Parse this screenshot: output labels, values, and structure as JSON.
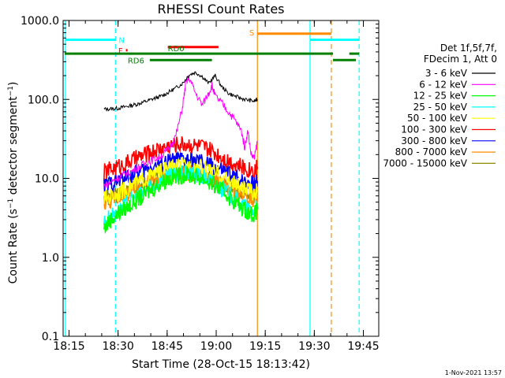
{
  "chart_data": {
    "type": "line",
    "title": "RHESSI Count Rates",
    "xlabel": "Start Time (28-Oct-15 18:13:42)",
    "ylabel": "Count Rate (s⁻¹ detector segment⁻¹)",
    "ylabel_main": "Count Rate (s",
    "ylabel_sup1": "−1",
    "ylabel_mid": " detector segment",
    "ylabel_sup2": "−1",
    "ylabel_close": ")",
    "ylog": true,
    "ylim": [
      0.1,
      1000
    ],
    "xlim_minutes": [
      -0.5,
      96
    ],
    "x_ticks": [
      {
        "m": 1.3,
        "label": "18:15"
      },
      {
        "m": 16.3,
        "label": "18:30"
      },
      {
        "m": 31.3,
        "label": "18:45"
      },
      {
        "m": 46.3,
        "label": "19:00"
      },
      {
        "m": 61.3,
        "label": "19:15"
      },
      {
        "m": 76.3,
        "label": "19:30"
      },
      {
        "m": 91.3,
        "label": "19:45"
      }
    ],
    "y_ticks": [
      {
        "v": 0.1,
        "label": "0.1"
      },
      {
        "v": 1,
        "label": "1.0"
      },
      {
        "v": 10,
        "label": "10.0"
      },
      {
        "v": 100,
        "label": "100.0"
      },
      {
        "v": 1000,
        "label": "1000.0"
      }
    ],
    "legend_header": [
      "Det 1f,5f,7f,",
      "FDecim 1, Att 0"
    ],
    "legend_position": "right",
    "series": [
      {
        "name": "3 - 6 keV",
        "color": "#000000",
        "x": [
          12,
          14,
          16,
          18,
          20,
          22,
          24,
          26,
          28,
          30,
          32,
          34,
          36,
          38,
          40,
          42,
          44,
          46,
          48,
          50,
          52,
          54,
          56,
          58,
          58.9
        ],
        "y": [
          75,
          76,
          77,
          80,
          83,
          87,
          92,
          98,
          105,
          112,
          125,
          140,
          160,
          205,
          220,
          195,
          160,
          200,
          145,
          120,
          110,
          103,
          98,
          95,
          100
        ]
      },
      {
        "name": "6 - 12 keV",
        "color": "#ff00ff",
        "x": [
          12,
          14,
          16,
          18,
          20,
          22,
          24,
          26,
          28,
          30,
          32,
          34,
          36,
          37,
          38,
          40,
          42,
          44,
          45,
          46,
          48,
          50,
          52,
          54,
          55,
          56,
          57,
          58,
          58.9
        ],
        "y": [
          8,
          9,
          10,
          11,
          12,
          13.5,
          15,
          16.5,
          18,
          20,
          24,
          35,
          80,
          160,
          190,
          120,
          85,
          120,
          150,
          110,
          90,
          70,
          55,
          40,
          25,
          40,
          20,
          18,
          30
        ]
      },
      {
        "name": "12 - 25 keV",
        "color": "#00ff00",
        "x": [
          12,
          14,
          16,
          18,
          20,
          22,
          24,
          26,
          28,
          30,
          32,
          34,
          36,
          38,
          40,
          42,
          44,
          46,
          48,
          50,
          52,
          54,
          56,
          58,
          58.9
        ],
        "y": [
          2.3,
          3,
          3.5,
          4,
          4.6,
          5.3,
          6,
          7,
          8,
          9,
          10,
          10.5,
          11,
          11,
          10.5,
          10,
          9,
          8,
          7,
          6,
          5,
          4.3,
          3.8,
          3.5,
          4
        ]
      },
      {
        "name": "25 - 50 keV",
        "color": "#00ffff",
        "x": [
          12,
          14,
          16,
          18,
          20,
          22,
          24,
          26,
          28,
          30,
          32,
          34,
          36,
          38,
          40,
          42,
          44,
          46,
          48,
          50,
          52,
          54,
          56,
          58,
          58.9
        ],
        "y": [
          2.8,
          3.3,
          3.8,
          4.3,
          5,
          5.8,
          6.6,
          7.5,
          8.5,
          9.5,
          10.5,
          11,
          11.5,
          11.5,
          11,
          10.5,
          9.5,
          8.5,
          7.5,
          6.5,
          5.5,
          4.7,
          4.1,
          3.8,
          4.3
        ]
      },
      {
        "name": "50 - 100 keV",
        "color": "#ffff00",
        "x": [
          12,
          14,
          16,
          18,
          20,
          22,
          24,
          26,
          28,
          30,
          32,
          34,
          36,
          38,
          40,
          42,
          44,
          46,
          48,
          50,
          52,
          54,
          56,
          58,
          58.9
        ],
        "y": [
          5.5,
          6,
          6.5,
          7,
          7.8,
          8.6,
          9.5,
          10.5,
          11.5,
          12.5,
          13.5,
          14,
          14.5,
          14.5,
          14,
          13.5,
          12.5,
          11.5,
          10.5,
          9.5,
          8.5,
          7.5,
          7,
          6.6,
          7
        ]
      },
      {
        "name": "100 - 300 keV",
        "color": "#ff0000",
        "x": [
          12,
          14,
          16,
          18,
          20,
          22,
          24,
          26,
          28,
          30,
          32,
          34,
          36,
          38,
          40,
          42,
          44,
          46,
          48,
          50,
          52,
          54,
          56,
          58,
          58.9
        ],
        "y": [
          12,
          13,
          14,
          15,
          16.5,
          18,
          19.5,
          21,
          23,
          24.5,
          26,
          27,
          27.5,
          27,
          26,
          25,
          23,
          21,
          19,
          17,
          15.5,
          14,
          13,
          13,
          14
        ]
      },
      {
        "name": "300 - 800 keV",
        "color": "#0000ff",
        "x": [
          12,
          14,
          16,
          18,
          20,
          22,
          24,
          26,
          28,
          30,
          32,
          34,
          36,
          38,
          40,
          42,
          44,
          46,
          48,
          50,
          52,
          54,
          56,
          58,
          58.9
        ],
        "y": [
          8,
          8.6,
          9.2,
          10,
          10.8,
          11.7,
          12.6,
          13.6,
          14.6,
          15.6,
          16.4,
          17,
          17.3,
          17,
          16.5,
          15.8,
          14.8,
          13.7,
          12.6,
          11.5,
          10.5,
          9.6,
          9,
          8.7,
          9.3
        ]
      },
      {
        "name": "800 - 7000 keV",
        "color": "#ff8c00",
        "x": [
          12,
          14,
          16,
          18,
          20,
          22,
          24,
          26,
          28,
          30,
          32,
          34,
          36,
          38,
          40,
          42,
          44,
          46,
          48,
          50,
          52,
          54,
          56,
          58,
          58.9
        ],
        "y": [
          5,
          5.3,
          5.7,
          6.2,
          6.8,
          7.5,
          8.2,
          9,
          9.8,
          10.6,
          11.3,
          11.8,
          12,
          11.8,
          11.4,
          10.8,
          10,
          9.2,
          8.3,
          7.5,
          6.8,
          6.2,
          5.8,
          5.5,
          5.9
        ]
      },
      {
        "name": "7000 - 15000 keV",
        "color": "#8b8b00",
        "x": [
          12,
          14,
          16,
          18,
          20,
          22,
          24,
          26,
          28,
          30,
          32,
          34,
          36,
          38,
          40,
          42,
          44,
          46,
          48,
          50,
          52,
          54,
          56,
          58,
          58.9
        ],
        "y": [
          5.5,
          5.8,
          6.2,
          6.6,
          7.2,
          7.8,
          8.5,
          9.2,
          10,
          10.8,
          11.5,
          12,
          12.2,
          12,
          11.6,
          11,
          10.3,
          9.5,
          8.7,
          7.9,
          7.2,
          6.6,
          6.2,
          5.9,
          6.3
        ]
      }
    ],
    "flag_bars": [
      {
        "id": "night-before",
        "color": "#00ffff",
        "label": "N",
        "x0": 0.2,
        "x1": 15.5,
        "y": 570
      },
      {
        "id": "night-after",
        "color": "#00ffff",
        "label": "",
        "x0": 75.0,
        "x1": 90.0,
        "y": 570
      },
      {
        "id": "flare",
        "color": "#ff0000",
        "label": "F",
        "x0": 18.7,
        "x1": 19.2,
        "y": 420
      },
      {
        "id": "saa",
        "color": "#ff8c00",
        "label": "S",
        "x0": 58.9,
        "x1": 81.5,
        "y": 680
      },
      {
        "id": "rd0",
        "color": "#ff0000",
        "label": "",
        "x0": 31.5,
        "x1": 47.0,
        "y": 460
      },
      {
        "id": "rd0-main",
        "color": "#008000",
        "label": "RD0",
        "x0": 0.0,
        "x1": 82.0,
        "y": 380
      },
      {
        "id": "rd0-end",
        "color": "#008000",
        "label": "",
        "x0": 87.0,
        "x1": 90.0,
        "y": 380
      },
      {
        "id": "rd6-a",
        "color": "#008000",
        "label": "RD6",
        "x0": 26.0,
        "x1": 45.0,
        "y": 315
      },
      {
        "id": "rd6-b",
        "color": "#008000",
        "label": "",
        "x0": 82.0,
        "x1": 89.0,
        "y": 315
      }
    ],
    "vertical_markers": [
      {
        "color": "#00ffff",
        "style": "solid",
        "m": 0.2
      },
      {
        "color": "#00ffff",
        "style": "dashed",
        "m": 15.5
      },
      {
        "color": "#ff8c00",
        "style": "solid",
        "m": 58.9
      },
      {
        "color": "#00ffff",
        "style": "solid",
        "m": 75.0
      },
      {
        "color": "#ff8c00",
        "style": "dashed",
        "m": 81.5
      },
      {
        "color": "#00ffff",
        "style": "dashed",
        "m": 90.0
      }
    ],
    "timestamp": "1-Nov-2021 13:57"
  }
}
